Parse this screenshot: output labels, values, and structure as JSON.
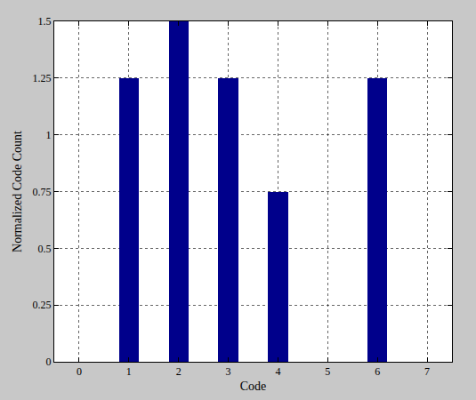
{
  "chart_data": {
    "type": "bar",
    "x": [
      0,
      1,
      2,
      3,
      4,
      5,
      6,
      7
    ],
    "values": [
      0,
      1.25,
      1.5,
      1.25,
      0.75,
      0,
      1.25,
      0
    ],
    "color": "#00008b",
    "x_label": "Code",
    "y_label": "Normalized Code Count",
    "xlim": [
      -0.5,
      7.5
    ],
    "xticks": [
      0,
      1,
      2,
      3,
      4,
      5,
      6,
      7
    ],
    "ylim": [
      0,
      1.5
    ],
    "yticks": [
      0,
      0.25,
      0.5,
      0.75,
      1,
      1.25,
      1.5
    ],
    "grid": true
  }
}
